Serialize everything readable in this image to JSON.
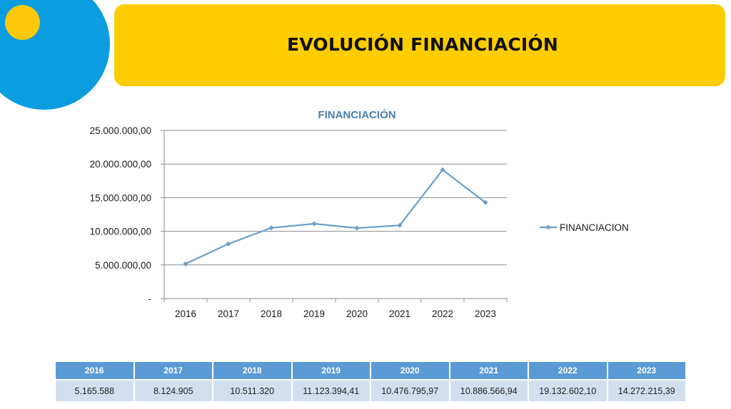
{
  "header": {
    "title": "EVOLUCIÓN FINANCIACIÓN"
  },
  "colors": {
    "accent_yellow": "#fecd00",
    "accent_blue": "#0b9ddf",
    "series_blue": "#6a9fca",
    "chart_title": "#4a7eab",
    "table_header": "#5b9bd5",
    "table_cell": "#d3deef"
  },
  "chart_data": {
    "type": "line",
    "title": "FINANCIACIÓN",
    "xlabel": "",
    "ylabel": "",
    "categories": [
      "2016",
      "2017",
      "2018",
      "2019",
      "2020",
      "2021",
      "2022",
      "2023"
    ],
    "series": [
      {
        "name": "FINANCIACION",
        "values": [
          5165588,
          8124905,
          10511320,
          11123394.41,
          10476795.97,
          10886566.94,
          19132602.1,
          14272215.39
        ]
      }
    ],
    "ylim": [
      0,
      25000000
    ],
    "yticks": [
      {
        "value": 0,
        "label": "-"
      },
      {
        "value": 5000000,
        "label": "5.000.000,00"
      },
      {
        "value": 10000000,
        "label": "10.000.000,00"
      },
      {
        "value": 15000000,
        "label": "15.000.000,00"
      },
      {
        "value": 20000000,
        "label": "20.000.000,00"
      },
      {
        "value": 25000000,
        "label": "25.000.000,00"
      }
    ],
    "grid": true,
    "legend_position": "right"
  },
  "table": {
    "headers": [
      "2016",
      "2017",
      "2018",
      "2019",
      "2020",
      "2021",
      "2022",
      "2023"
    ],
    "values": [
      "5.165.588",
      "8.124.905",
      "10.511.320",
      "11.123.394,41",
      "10.476.795,97",
      "10.886.566,94",
      "19.132.602,10",
      "14.272.215,39"
    ]
  }
}
